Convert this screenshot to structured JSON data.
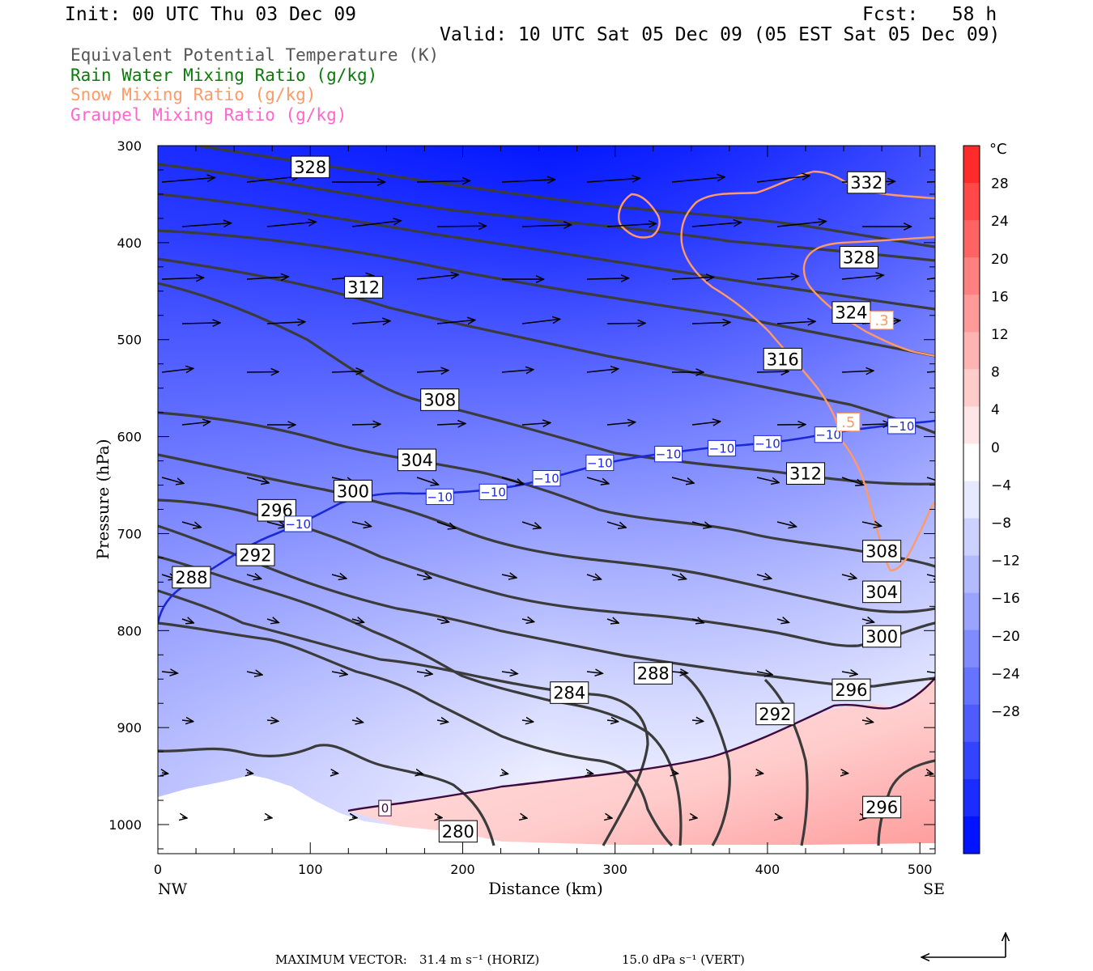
{
  "header": {
    "init": "Init: 00 UTC Thu 03 Dec 09",
    "fcst": "Fcst:   58 h",
    "valid": "Valid: 10 UTC Sat 05 Dec 09 (05 EST Sat 05 Dec 09)"
  },
  "legend": [
    {
      "text": "Equivalent Potential Temperature (K)",
      "color": "#555555"
    },
    {
      "text": "Rain Water Mixing Ratio (g/kg)",
      "color": "#0a7a0a"
    },
    {
      "text": "Snow Mixing Ratio (g/kg)",
      "color": "#ff9966"
    },
    {
      "text": "Graupel Mixing Ratio (g/kg)",
      "color": "#ff66cc"
    }
  ],
  "footer": {
    "label": "MAXIMUM VECTOR:",
    "horiz": "31.4 m s⁻¹ (HORIZ)",
    "vert": "15.0 dPa s⁻¹ (VERT)"
  },
  "chart_data": {
    "type": "heatmap",
    "title": "",
    "xlabel": "Distance (km)",
    "ylabel": "Pressure (hPa)",
    "x_ends": {
      "left": "NW",
      "right": "SE"
    },
    "xlim": [
      0,
      510
    ],
    "ylim": [
      300,
      1030
    ],
    "x_ticks": [
      0,
      100,
      200,
      300,
      400,
      500
    ],
    "y_ticks": [
      300,
      400,
      500,
      600,
      700,
      800,
      900,
      1000
    ],
    "colorbar": {
      "unit": "°C",
      "ticks": [
        28,
        24,
        20,
        16,
        12,
        8,
        4,
        0,
        -4,
        -8,
        -12,
        -16,
        -20,
        -24,
        -28
      ],
      "colors": [
        "#ff2a2a",
        "#ff4848",
        "#ff6464",
        "#ff8080",
        "#ff9a9a",
        "#ffb3b3",
        "#ffcccc",
        "#ffe6e6",
        "#ffffff",
        "#e6e9ff",
        "#ccd1ff",
        "#b3baff",
        "#9aa3ff",
        "#808bff",
        "#6673ff",
        "#4d5bff",
        "#3344ff",
        "#1a2cff",
        "#0014ff"
      ]
    },
    "theta_e_labels": [
      {
        "label": "328",
        "x": 100,
        "p": 322
      },
      {
        "label": "332",
        "x": 465,
        "p": 338
      },
      {
        "label": "328",
        "x": 460,
        "p": 415
      },
      {
        "label": "312",
        "x": 135,
        "p": 446
      },
      {
        "label": "324",
        "x": 455,
        "p": 472
      },
      {
        "label": "316",
        "x": 410,
        "p": 520
      },
      {
        "label": "308",
        "x": 185,
        "p": 562
      },
      {
        "label": "304",
        "x": 170,
        "p": 624
      },
      {
        "label": "312",
        "x": 425,
        "p": 638
      },
      {
        "label": "300",
        "x": 128,
        "p": 656
      },
      {
        "label": "296",
        "x": 78,
        "p": 676
      },
      {
        "label": "292",
        "x": 64,
        "p": 722
      },
      {
        "label": "288",
        "x": 22,
        "p": 745
      },
      {
        "label": "308",
        "x": 475,
        "p": 718
      },
      {
        "label": "304",
        "x": 475,
        "p": 760
      },
      {
        "label": "300",
        "x": 475,
        "p": 806
      },
      {
        "label": "288",
        "x": 325,
        "p": 844
      },
      {
        "label": "296",
        "x": 455,
        "p": 861
      },
      {
        "label": "284",
        "x": 270,
        "p": 864
      },
      {
        "label": "292",
        "x": 405,
        "p": 886
      },
      {
        "label": "296",
        "x": 475,
        "p": 982
      },
      {
        "label": "280",
        "x": 197,
        "p": 1007
      }
    ],
    "temperature_labels": [
      {
        "label": "−10",
        "x": 185,
        "p": 662
      },
      {
        "label": "−10",
        "x": 220,
        "p": 657
      },
      {
        "label": "−10",
        "x": 255,
        "p": 643
      },
      {
        "label": "−10",
        "x": 290,
        "p": 627
      },
      {
        "label": "−10",
        "x": 335,
        "p": 618
      },
      {
        "label": "−10",
        "x": 370,
        "p": 612
      },
      {
        "label": "−10",
        "x": 400,
        "p": 607
      },
      {
        "label": "−10",
        "x": 440,
        "p": 598
      },
      {
        "label": "−10",
        "x": 488,
        "p": 589
      },
      {
        "label": "−10",
        "x": 92,
        "p": 690
      },
      {
        "label": "0",
        "x": 149,
        "p": 983
      }
    ],
    "snow_labels": [
      {
        "label": ".3",
        "x": 475,
        "p": 480
      },
      {
        "label": ".5",
        "x": 453,
        "p": 585
      }
    ]
  }
}
